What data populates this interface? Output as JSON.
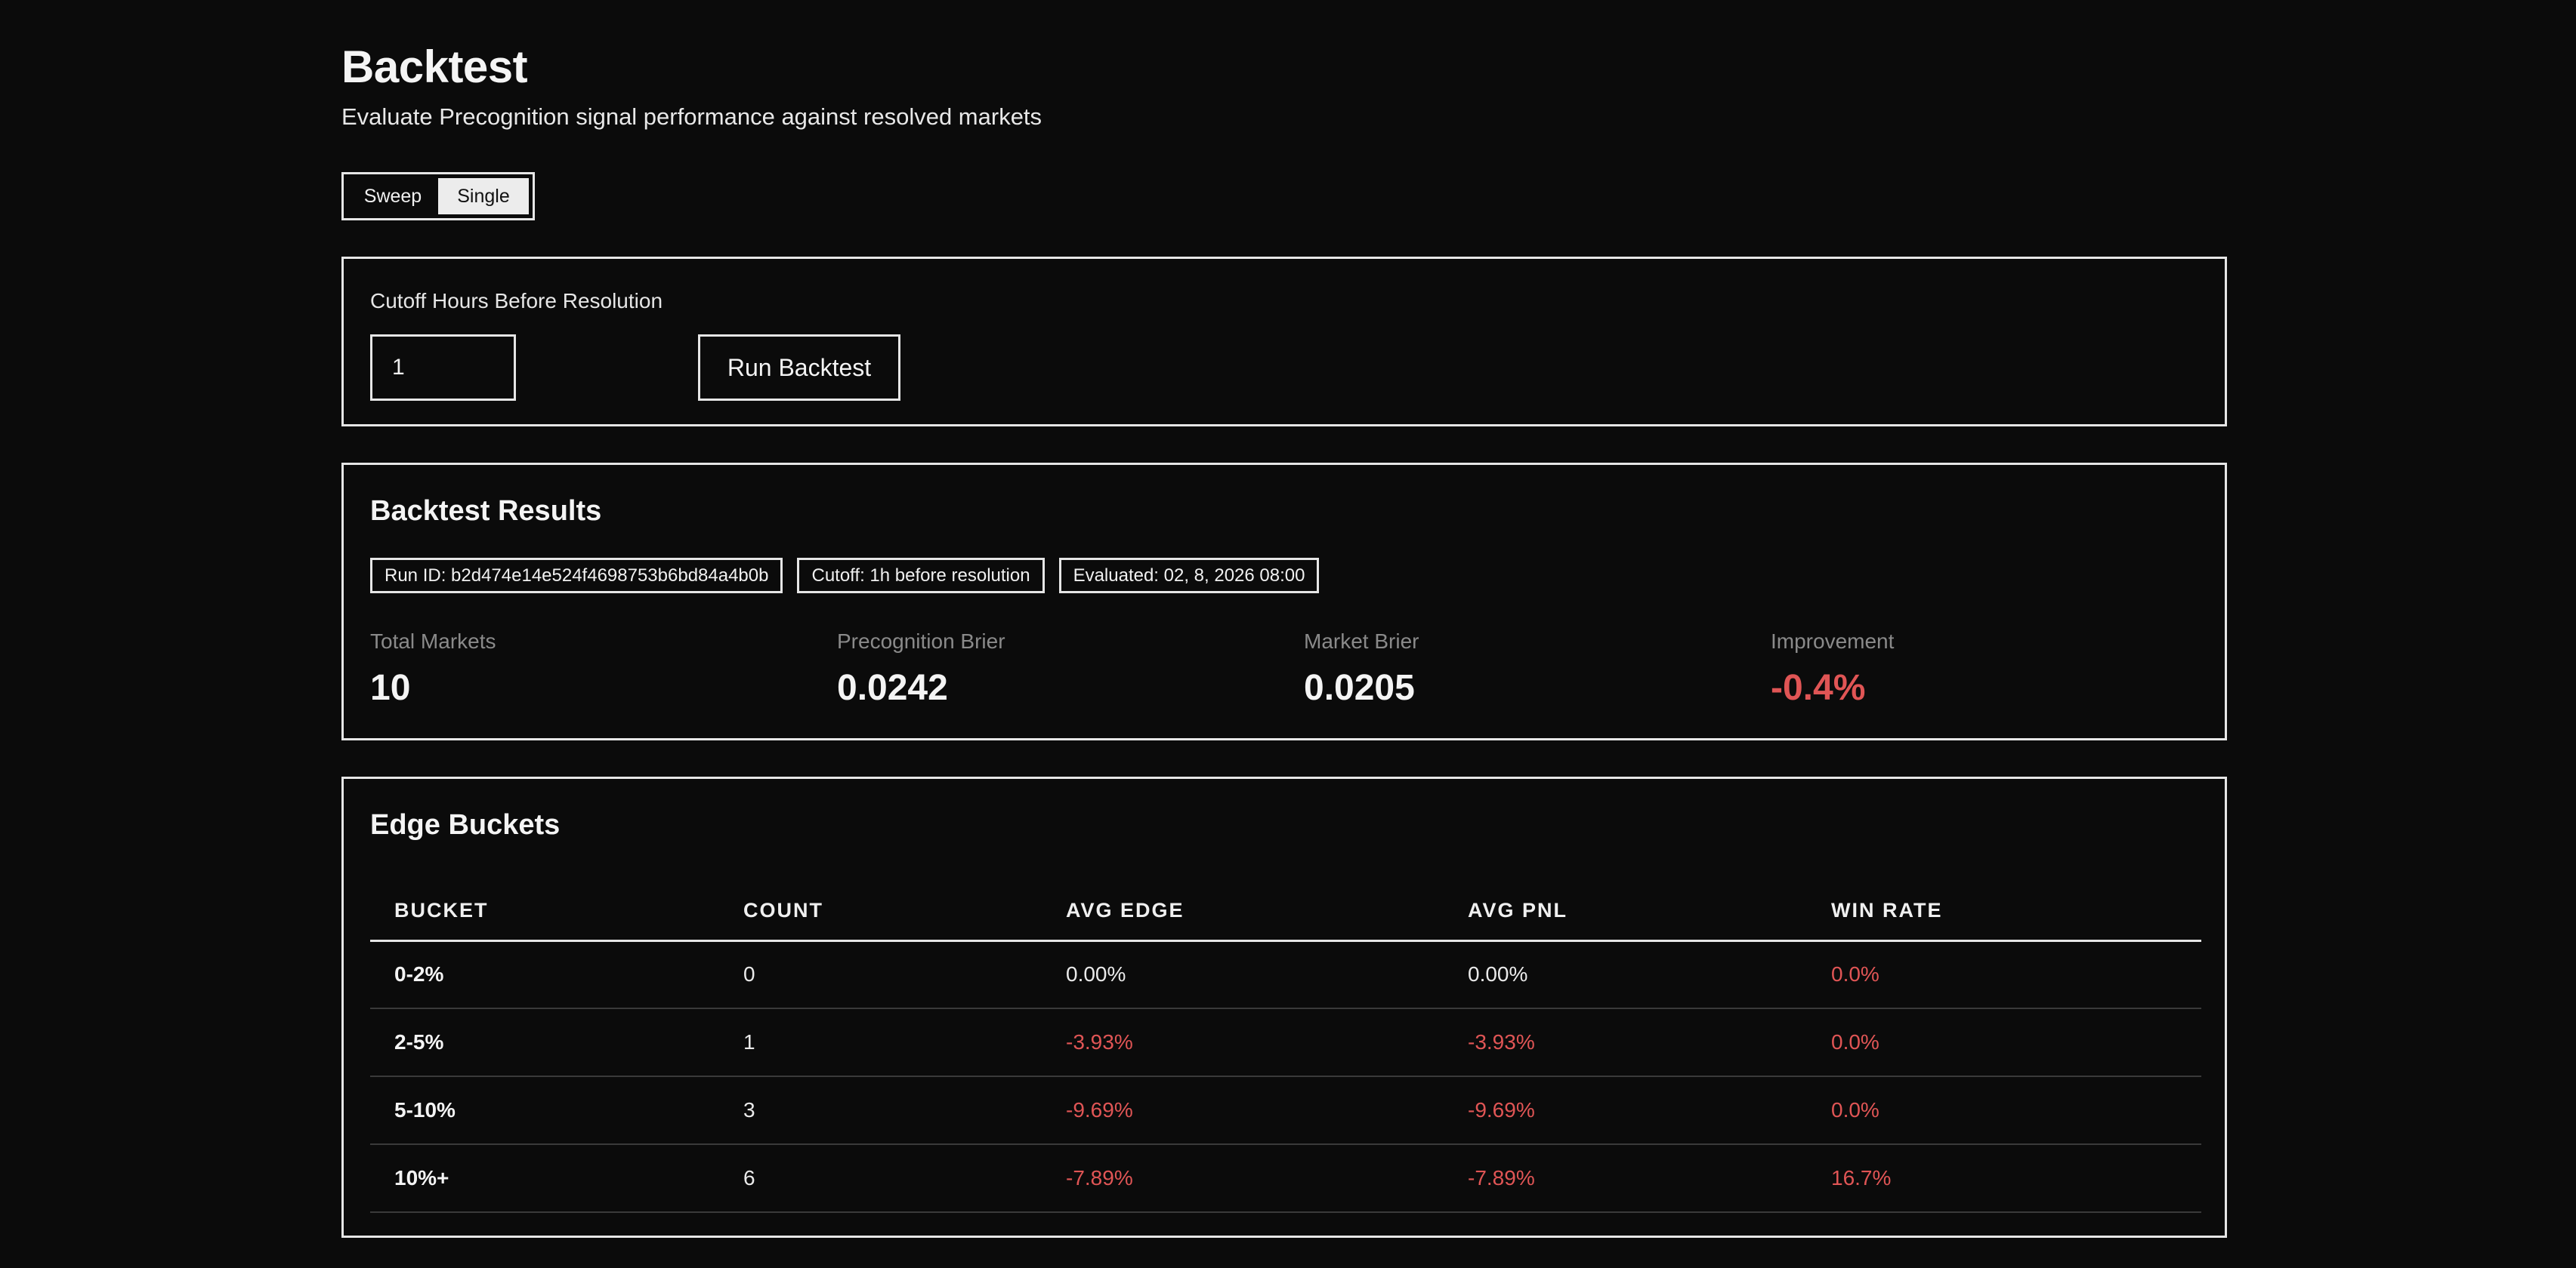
{
  "header": {
    "title": "Backtest",
    "subtitle": "Evaluate Precognition signal performance against resolved markets"
  },
  "mode_toggle": {
    "options": [
      "Sweep",
      "Single"
    ],
    "selected": "Single"
  },
  "config": {
    "cutoff_label": "Cutoff Hours Before Resolution",
    "cutoff_value": "1",
    "run_button_label": "Run Backtest"
  },
  "results": {
    "heading": "Backtest Results",
    "chips": {
      "run_id": "Run ID: b2d474e14e524f4698753b6bd84a4b0b",
      "cutoff": "Cutoff: 1h before resolution",
      "evaluated": "Evaluated: 02, 8, 2026 08:00"
    },
    "stats": [
      {
        "label": "Total Markets",
        "value": "10"
      },
      {
        "label": "Precognition Brier",
        "value": "0.0242"
      },
      {
        "label": "Market Brier",
        "value": "0.0205"
      },
      {
        "label": "Improvement",
        "value": "-0.4%"
      }
    ]
  },
  "edge_buckets": {
    "heading": "Edge Buckets",
    "columns": [
      "BUCKET",
      "COUNT",
      "AVG EDGE",
      "AVG PNL",
      "WIN RATE"
    ],
    "rows": [
      {
        "bucket": "0-2%",
        "count": "0",
        "avg_edge": "0.00%",
        "avg_pnl": "0.00%",
        "win_rate": "0.0%"
      },
      {
        "bucket": "2-5%",
        "count": "1",
        "avg_edge": "-3.93%",
        "avg_pnl": "-3.93%",
        "win_rate": "0.0%"
      },
      {
        "bucket": "5-10%",
        "count": "3",
        "avg_edge": "-9.69%",
        "avg_pnl": "-9.69%",
        "win_rate": "0.0%"
      },
      {
        "bucket": "10%+",
        "count": "6",
        "avg_edge": "-7.89%",
        "avg_pnl": "-7.89%",
        "win_rate": "16.7%"
      }
    ]
  },
  "colors": {
    "background": "#0b0b0b",
    "foreground": "#f2f2f2",
    "negative": "#e05555",
    "muted": "#8a8a8a"
  }
}
